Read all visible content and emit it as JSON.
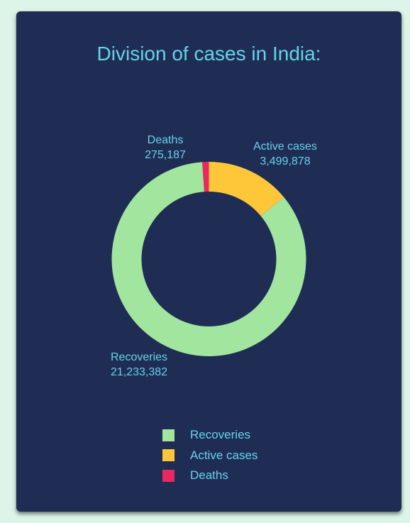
{
  "title": "Division of cases in India:",
  "chart_data": {
    "type": "pie",
    "title": "Division of cases in India:",
    "hole": true,
    "legend_position": "bottom",
    "slices": [
      {
        "name": "Recoveries",
        "value": 21233382,
        "display": "21,233,382",
        "color": "#a2e59e"
      },
      {
        "name": "Active cases",
        "value": 3499878,
        "display": "3,499,878",
        "color": "#fec639"
      },
      {
        "name": "Deaths",
        "value": 275187,
        "display": "275,187",
        "color": "#e8285f"
      }
    ]
  },
  "colors": {
    "background": "#dcf5e8",
    "card": "#1f2d54",
    "text": "#66d3e8"
  }
}
